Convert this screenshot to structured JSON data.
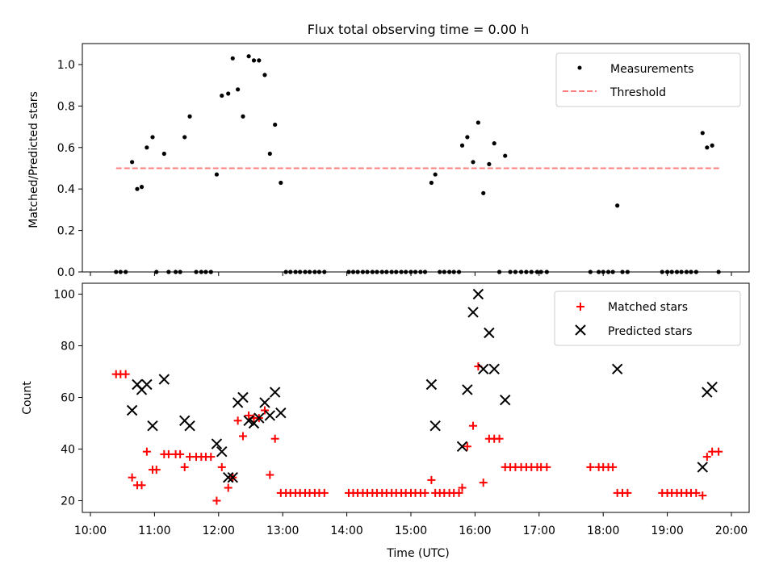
{
  "figure": {
    "title": "Flux total observing time = 0.00 h",
    "xlabel": "Time (UTC)",
    "xticks": [
      "10:00",
      "11:00",
      "12:00",
      "13:00",
      "14:00",
      "15:00",
      "16:00",
      "17:00",
      "18:00",
      "19:00",
      "20:00"
    ]
  },
  "colors": {
    "matched": "#ff0000",
    "predicted": "#000000",
    "threshold": "#ff7f7f",
    "measurements": "#000000"
  },
  "chart_data": [
    {
      "type": "scatter",
      "ylabel": "Matched/Predicted stars",
      "ylim": [
        0,
        1.1
      ],
      "yticks": [
        "0.0",
        "0.2",
        "0.4",
        "0.6",
        "0.8",
        "1.0"
      ],
      "legend_position": "top-right",
      "x_unit": "hours UTC",
      "series": [
        {
          "name": "Measurements",
          "marker": "dot",
          "points": [
            [
              10.4,
              0
            ],
            [
              10.47,
              0
            ],
            [
              10.55,
              0
            ],
            [
              10.65,
              0.53
            ],
            [
              10.73,
              0.4
            ],
            [
              10.8,
              0.41
            ],
            [
              10.88,
              0.6
            ],
            [
              10.97,
              0.65
            ],
            [
              11.03,
              0
            ],
            [
              11.15,
              0.57
            ],
            [
              11.22,
              0
            ],
            [
              11.33,
              0
            ],
            [
              11.4,
              0
            ],
            [
              11.47,
              0.65
            ],
            [
              11.55,
              0.75
            ],
            [
              11.65,
              0
            ],
            [
              11.73,
              0
            ],
            [
              11.8,
              0
            ],
            [
              11.88,
              0
            ],
            [
              11.97,
              0.47
            ],
            [
              12.05,
              0.85
            ],
            [
              12.15,
              0.86
            ],
            [
              12.22,
              1.03
            ],
            [
              12.3,
              0.88
            ],
            [
              12.38,
              0.75
            ],
            [
              12.47,
              1.04
            ],
            [
              12.55,
              1.02
            ],
            [
              12.63,
              1.02
            ],
            [
              12.72,
              0.95
            ],
            [
              12.8,
              0.57
            ],
            [
              12.88,
              0.71
            ],
            [
              12.97,
              0.43
            ],
            [
              13.05,
              0
            ],
            [
              13.12,
              0
            ],
            [
              13.2,
              0
            ],
            [
              13.27,
              0
            ],
            [
              13.35,
              0
            ],
            [
              13.42,
              0
            ],
            [
              13.5,
              0
            ],
            [
              13.57,
              0
            ],
            [
              13.65,
              0
            ],
            [
              14.03,
              0
            ],
            [
              14.1,
              0
            ],
            [
              14.17,
              0
            ],
            [
              14.25,
              0
            ],
            [
              14.32,
              0
            ],
            [
              14.4,
              0
            ],
            [
              14.47,
              0
            ],
            [
              14.55,
              0
            ],
            [
              14.62,
              0
            ],
            [
              14.7,
              0
            ],
            [
              14.77,
              0
            ],
            [
              14.85,
              0
            ],
            [
              14.92,
              0
            ],
            [
              15.0,
              0
            ],
            [
              15.07,
              0
            ],
            [
              15.15,
              0
            ],
            [
              15.22,
              0
            ],
            [
              15.32,
              0.43
            ],
            [
              15.38,
              0.47
            ],
            [
              15.45,
              0
            ],
            [
              15.52,
              0
            ],
            [
              15.6,
              0
            ],
            [
              15.67,
              0
            ],
            [
              15.75,
              0
            ],
            [
              15.8,
              0.61
            ],
            [
              15.88,
              0.65
            ],
            [
              15.97,
              0.53
            ],
            [
              16.05,
              0.72
            ],
            [
              16.13,
              0.38
            ],
            [
              16.22,
              0.52
            ],
            [
              16.3,
              0.62
            ],
            [
              16.38,
              0
            ],
            [
              16.47,
              0.56
            ],
            [
              16.55,
              0
            ],
            [
              16.63,
              0
            ],
            [
              16.72,
              0
            ],
            [
              16.8,
              0
            ],
            [
              16.88,
              0
            ],
            [
              16.97,
              0
            ],
            [
              17.03,
              0
            ],
            [
              17.12,
              0
            ],
            [
              17.8,
              0
            ],
            [
              17.93,
              0
            ],
            [
              18.0,
              0
            ],
            [
              18.08,
              0
            ],
            [
              18.15,
              0
            ],
            [
              18.22,
              0.32
            ],
            [
              18.3,
              0
            ],
            [
              18.38,
              0
            ],
            [
              18.92,
              0
            ],
            [
              19.0,
              0
            ],
            [
              19.07,
              0
            ],
            [
              19.15,
              0
            ],
            [
              19.22,
              0
            ],
            [
              19.3,
              0
            ],
            [
              19.37,
              0
            ],
            [
              19.45,
              0
            ],
            [
              19.55,
              0.67
            ],
            [
              19.62,
              0.6
            ],
            [
              19.7,
              0.61
            ],
            [
              19.8,
              0
            ]
          ]
        },
        {
          "name": "Threshold",
          "marker": "dashed-line",
          "points": [
            [
              10.4,
              0.5
            ],
            [
              19.82,
              0.5
            ]
          ]
        }
      ]
    },
    {
      "type": "scatter",
      "ylabel": "Count",
      "ylim": [
        15,
        104
      ],
      "yticks": [
        "20",
        "40",
        "60",
        "80",
        "100"
      ],
      "legend_position": "top-right",
      "x_unit": "hours UTC",
      "series": [
        {
          "name": "Matched stars",
          "marker": "plus",
          "points": [
            [
              10.4,
              69
            ],
            [
              10.47,
              69
            ],
            [
              10.55,
              69
            ],
            [
              10.65,
              29
            ],
            [
              10.73,
              26
            ],
            [
              10.8,
              26
            ],
            [
              10.88,
              39
            ],
            [
              10.97,
              32
            ],
            [
              11.03,
              32
            ],
            [
              11.15,
              38
            ],
            [
              11.22,
              38
            ],
            [
              11.33,
              38
            ],
            [
              11.4,
              38
            ],
            [
              11.47,
              33
            ],
            [
              11.55,
              37
            ],
            [
              11.65,
              37
            ],
            [
              11.73,
              37
            ],
            [
              11.8,
              37
            ],
            [
              11.88,
              37
            ],
            [
              11.97,
              20
            ],
            [
              12.05,
              33
            ],
            [
              12.15,
              25
            ],
            [
              12.22,
              29
            ],
            [
              12.3,
              51
            ],
            [
              12.38,
              45
            ],
            [
              12.47,
              53
            ],
            [
              12.55,
              52
            ],
            [
              12.63,
              52
            ],
            [
              12.72,
              55
            ],
            [
              12.8,
              30
            ],
            [
              12.88,
              44
            ],
            [
              12.97,
              23
            ],
            [
              13.05,
              23
            ],
            [
              13.12,
              23
            ],
            [
              13.2,
              23
            ],
            [
              13.27,
              23
            ],
            [
              13.35,
              23
            ],
            [
              13.42,
              23
            ],
            [
              13.5,
              23
            ],
            [
              13.57,
              23
            ],
            [
              13.65,
              23
            ],
            [
              14.03,
              23
            ],
            [
              14.1,
              23
            ],
            [
              14.17,
              23
            ],
            [
              14.25,
              23
            ],
            [
              14.32,
              23
            ],
            [
              14.4,
              23
            ],
            [
              14.47,
              23
            ],
            [
              14.55,
              23
            ],
            [
              14.62,
              23
            ],
            [
              14.7,
              23
            ],
            [
              14.77,
              23
            ],
            [
              14.85,
              23
            ],
            [
              14.92,
              23
            ],
            [
              15.0,
              23
            ],
            [
              15.07,
              23
            ],
            [
              15.15,
              23
            ],
            [
              15.22,
              23
            ],
            [
              15.32,
              28
            ],
            [
              15.38,
              23
            ],
            [
              15.45,
              23
            ],
            [
              15.52,
              23
            ],
            [
              15.6,
              23
            ],
            [
              15.67,
              23
            ],
            [
              15.75,
              23
            ],
            [
              15.8,
              25
            ],
            [
              15.88,
              41
            ],
            [
              15.97,
              49
            ],
            [
              16.05,
              72
            ],
            [
              16.13,
              27
            ],
            [
              16.22,
              44
            ],
            [
              16.3,
              44
            ],
            [
              16.38,
              44
            ],
            [
              16.47,
              33
            ],
            [
              16.55,
              33
            ],
            [
              16.63,
              33
            ],
            [
              16.72,
              33
            ],
            [
              16.8,
              33
            ],
            [
              16.88,
              33
            ],
            [
              16.97,
              33
            ],
            [
              17.03,
              33
            ],
            [
              17.12,
              33
            ],
            [
              17.8,
              33
            ],
            [
              17.93,
              33
            ],
            [
              18.0,
              33
            ],
            [
              18.08,
              33
            ],
            [
              18.15,
              33
            ],
            [
              18.22,
              23
            ],
            [
              18.3,
              23
            ],
            [
              18.38,
              23
            ],
            [
              18.92,
              23
            ],
            [
              19.0,
              23
            ],
            [
              19.07,
              23
            ],
            [
              19.15,
              23
            ],
            [
              19.22,
              23
            ],
            [
              19.3,
              23
            ],
            [
              19.37,
              23
            ],
            [
              19.45,
              23
            ],
            [
              19.55,
              22
            ],
            [
              19.62,
              37
            ],
            [
              19.7,
              39
            ],
            [
              19.8,
              39
            ]
          ]
        },
        {
          "name": "Predicted stars",
          "marker": "x",
          "points": [
            [
              10.65,
              55
            ],
            [
              10.73,
              65
            ],
            [
              10.8,
              63
            ],
            [
              10.88,
              65
            ],
            [
              10.97,
              49
            ],
            [
              11.15,
              67
            ],
            [
              11.47,
              51
            ],
            [
              11.55,
              49
            ],
            [
              11.97,
              42
            ],
            [
              12.05,
              39
            ],
            [
              12.15,
              29
            ],
            [
              12.22,
              29
            ],
            [
              12.3,
              58
            ],
            [
              12.38,
              60
            ],
            [
              12.47,
              51
            ],
            [
              12.55,
              50
            ],
            [
              12.63,
              52
            ],
            [
              12.72,
              58
            ],
            [
              12.8,
              53
            ],
            [
              12.88,
              62
            ],
            [
              12.97,
              54
            ],
            [
              15.32,
              65
            ],
            [
              15.38,
              49
            ],
            [
              15.8,
              41
            ],
            [
              15.88,
              63
            ],
            [
              15.97,
              93
            ],
            [
              16.05,
              100
            ],
            [
              16.13,
              71
            ],
            [
              16.22,
              85
            ],
            [
              16.3,
              71
            ],
            [
              16.47,
              59
            ],
            [
              18.22,
              71
            ],
            [
              19.55,
              33
            ],
            [
              19.62,
              62
            ],
            [
              19.7,
              64
            ]
          ]
        }
      ]
    }
  ]
}
